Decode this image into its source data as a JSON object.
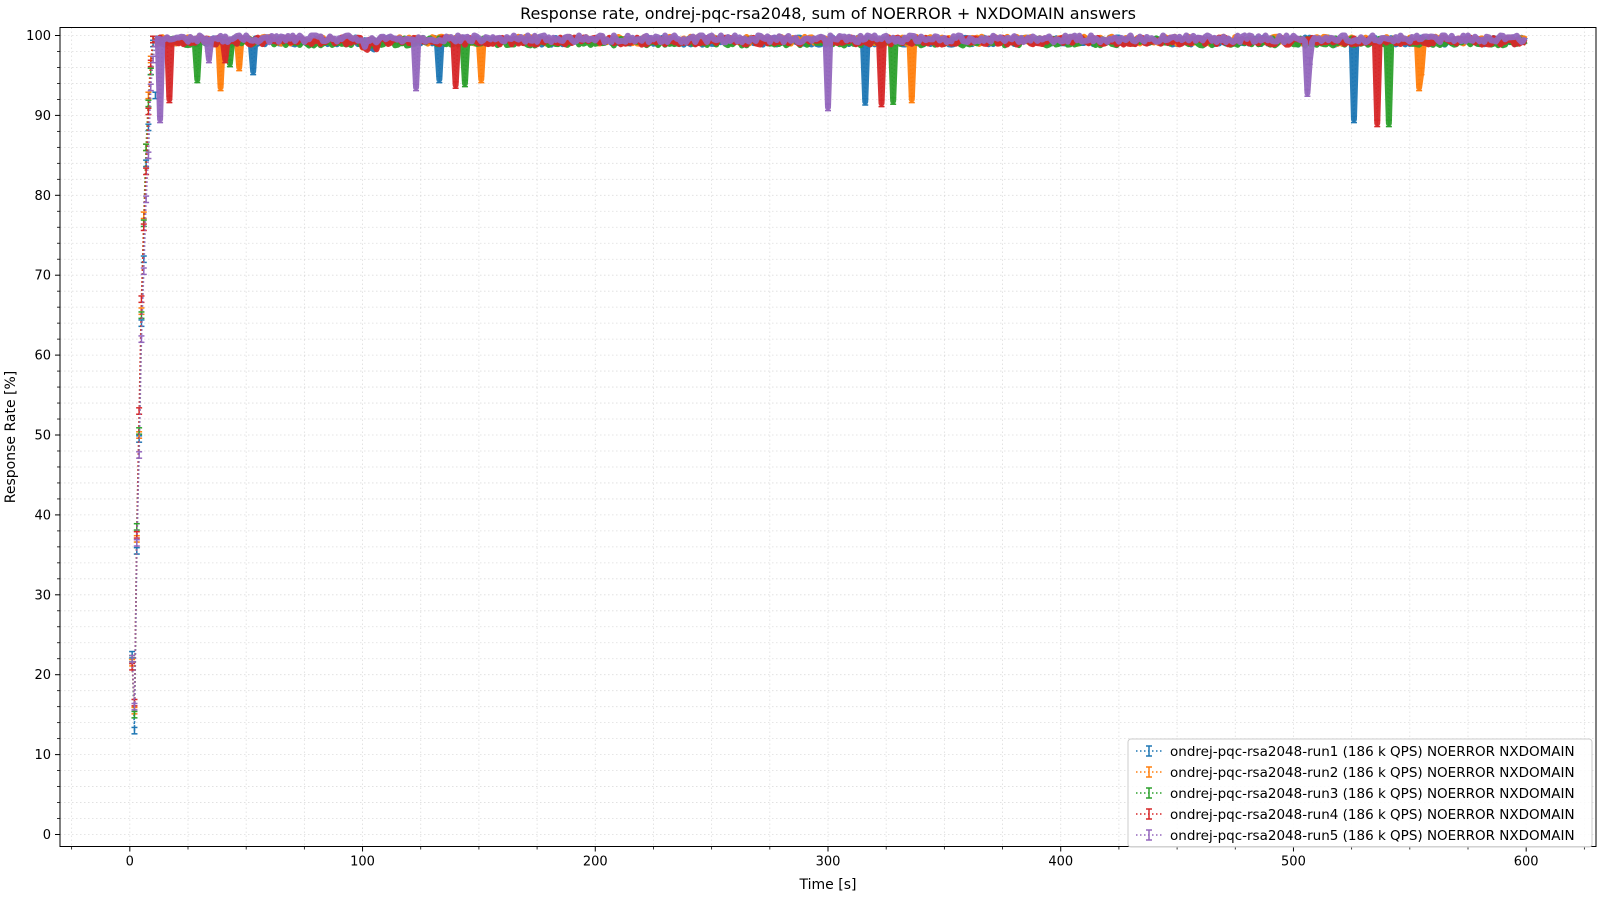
{
  "chart_data": {
    "type": "line",
    "title": "Response rate, ondrej-pqc-rsa2048, sum of NOERROR + NXDOMAIN answers",
    "xlabel": "Time [s]",
    "ylabel": "Response Rate [%]",
    "xlim": [
      -30,
      630
    ],
    "ylim": [
      -1.5,
      101
    ],
    "x_ticks": [
      0,
      100,
      200,
      300,
      400,
      500,
      600
    ],
    "y_ticks": [
      0,
      10,
      20,
      30,
      40,
      50,
      60,
      70,
      80,
      90,
      100
    ],
    "grid": true,
    "legend_position": "bottom-right",
    "line_style": "dotted",
    "marker": "errorbar",
    "series": [
      {
        "name": "ondrej-pqc-rsa2048-run1 (186 k QPS) NOERROR NXDOMAIN",
        "color": "#1f77b4",
        "ramp": [
          [
            1,
            22.5
          ],
          [
            2,
            13
          ],
          [
            3,
            35.5
          ],
          [
            4,
            49.5
          ],
          [
            5,
            64
          ],
          [
            6,
            72
          ],
          [
            7,
            84
          ],
          [
            8,
            88.5
          ],
          [
            9,
            95.5
          ],
          [
            10,
            99
          ],
          [
            11,
            99.5
          ]
        ],
        "plateau": 99.3,
        "dips": [
          [
            11,
            92.5
          ],
          [
            53,
            95.5
          ],
          [
            133,
            94.5
          ],
          [
            316,
            91.7
          ],
          [
            526,
            89.5
          ]
        ]
      },
      {
        "name": "ondrej-pqc-rsa2048-run2 (186 k QPS) NOERROR NXDOMAIN",
        "color": "#ff7f0e",
        "ramp": [
          [
            1,
            21.5
          ],
          [
            2,
            15.5
          ],
          [
            3,
            37
          ],
          [
            4,
            50
          ],
          [
            5,
            65.5
          ],
          [
            6,
            77.5
          ],
          [
            7,
            86
          ],
          [
            8,
            92.5
          ],
          [
            9,
            97
          ],
          [
            10,
            99.5
          ]
        ],
        "plateau": 99.4,
        "dips": [
          [
            39,
            93.5
          ],
          [
            47,
            96
          ],
          [
            151,
            94.5
          ],
          [
            336,
            92
          ],
          [
            554,
            93.5
          ],
          [
            555,
            95.5
          ]
        ]
      },
      {
        "name": "ondrej-pqc-rsa2048-run3 (186 k QPS) NOERROR NXDOMAIN",
        "color": "#2ca02c",
        "ramp": [
          [
            1,
            22
          ],
          [
            2,
            15
          ],
          [
            3,
            38.5
          ],
          [
            4,
            50.5
          ],
          [
            5,
            65
          ],
          [
            6,
            76.5
          ],
          [
            7,
            86
          ],
          [
            8,
            91.5
          ],
          [
            9,
            95.5
          ],
          [
            10,
            99.5
          ]
        ],
        "plateau": 99.2,
        "dips": [
          [
            29,
            94.5
          ],
          [
            43,
            96.5
          ],
          [
            144,
            94
          ],
          [
            328,
            91.8
          ],
          [
            541,
            89
          ]
        ]
      },
      {
        "name": "ondrej-pqc-rsa2048-run4 (186 k QPS) NOERROR NXDOMAIN",
        "color": "#d62728",
        "ramp": [
          [
            1,
            21
          ],
          [
            2,
            16.5
          ],
          [
            3,
            37.5
          ],
          [
            4,
            53
          ],
          [
            5,
            67
          ],
          [
            6,
            76
          ],
          [
            7,
            83
          ],
          [
            8,
            90.5
          ],
          [
            9,
            96.5
          ],
          [
            10,
            99.5
          ]
        ],
        "plateau": 99.3,
        "dips": [
          [
            17,
            92
          ],
          [
            41,
            97
          ],
          [
            140,
            93.8
          ],
          [
            323,
            91.5
          ],
          [
            536,
            89
          ]
        ]
      },
      {
        "name": "ondrej-pqc-rsa2048-run5 (186 k QPS) NOERROR NXDOMAIN",
        "color": "#9467bd",
        "ramp": [
          [
            1,
            22
          ],
          [
            2,
            16
          ],
          [
            3,
            36.5
          ],
          [
            4,
            47.5
          ],
          [
            5,
            62
          ],
          [
            6,
            70.5
          ],
          [
            7,
            79.5
          ],
          [
            8,
            85
          ],
          [
            9,
            93.5
          ],
          [
            10,
            97
          ],
          [
            11,
            99
          ]
        ],
        "plateau": 99.6,
        "dips": [
          [
            13,
            89.5
          ],
          [
            34,
            97
          ],
          [
            123,
            93.5
          ],
          [
            300,
            91
          ],
          [
            506,
            92.8
          ],
          [
            507,
            96.8
          ]
        ]
      }
    ]
  }
}
